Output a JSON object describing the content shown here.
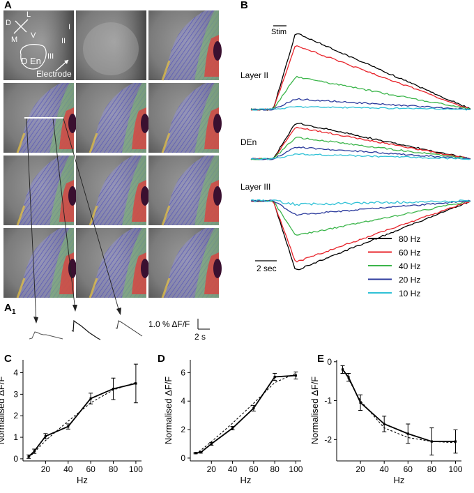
{
  "panels": {
    "A": "A",
    "A1": "A",
    "A1_sub": "1",
    "B": "B",
    "C": "C",
    "D": "D",
    "E": "E"
  },
  "panelA": {
    "orientation": {
      "d": "D",
      "l": "L",
      "m": "M",
      "v": "V"
    },
    "layer_labels": {
      "i": "I",
      "ii": "II",
      "iii": "III"
    },
    "region_label": "D En",
    "electrode_label": "Electrode"
  },
  "panelA1": {
    "scale_label": "1.0 % ΔF/F",
    "time_label": "2 s"
  },
  "panelB": {
    "stim_label": "Stim",
    "rows": [
      "Layer II",
      "DEn",
      "Layer III"
    ],
    "scale_label": "2 sec",
    "legend": [
      {
        "label": "80 Hz",
        "color": "#000000"
      },
      {
        "label": "60 Hz",
        "color": "#e8242b"
      },
      {
        "label": "40 Hz",
        "color": "#3bb54a"
      },
      {
        "label": "20 Hz",
        "color": "#2b3a9c"
      },
      {
        "label": "10 Hz",
        "color": "#2fc1d6"
      }
    ]
  },
  "chart_data": [
    {
      "type": "line",
      "panel": "C",
      "xlabel": "Hz",
      "ylabel": "Normalised ΔF/F",
      "xticks": [
        20,
        40,
        60,
        80,
        100
      ],
      "yticks": [
        0,
        1,
        2,
        3,
        4
      ],
      "xlim": [
        0,
        105
      ],
      "ylim": [
        -0.1,
        4.6
      ],
      "series": [
        {
          "name": "data",
          "style": "solid",
          "x": [
            5,
            10,
            20,
            40,
            60,
            80,
            100
          ],
          "y": [
            0.1,
            0.35,
            1.05,
            1.5,
            2.8,
            3.25,
            3.5
          ],
          "err": [
            0.08,
            0.1,
            0.12,
            0.12,
            0.25,
            0.5,
            0.9
          ]
        },
        {
          "name": "fit",
          "style": "dashed",
          "x": [
            5,
            10,
            20,
            40,
            60,
            80,
            100
          ],
          "y": [
            0.05,
            0.3,
            0.85,
            1.75,
            2.6,
            3.2,
            3.55
          ]
        }
      ]
    },
    {
      "type": "line",
      "panel": "D",
      "xlabel": "Hz",
      "ylabel": "Normalised ΔF/F",
      "xticks": [
        20,
        40,
        60,
        80,
        100
      ],
      "yticks": [
        0,
        2,
        4,
        6
      ],
      "xlim": [
        0,
        105
      ],
      "ylim": [
        -0.2,
        6.9
      ],
      "series": [
        {
          "name": "data",
          "style": "solid",
          "x": [
            5,
            10,
            20,
            40,
            60,
            80,
            100
          ],
          "y": [
            0.35,
            0.4,
            1.0,
            2.1,
            3.5,
            5.7,
            5.8
          ],
          "err": [
            0.05,
            0.05,
            0.1,
            0.12,
            0.2,
            0.25,
            0.25
          ]
        },
        {
          "name": "fit",
          "style": "dashed",
          "x": [
            5,
            10,
            20,
            40,
            60,
            80,
            100
          ],
          "y": [
            0.3,
            0.55,
            1.15,
            2.45,
            3.85,
            5.3,
            5.95
          ]
        }
      ]
    },
    {
      "type": "line",
      "panel": "E",
      "xlabel": "Hz",
      "ylabel": "Normalised ΔF/F",
      "xticks": [
        20,
        40,
        60,
        80,
        100
      ],
      "yticks": [
        0,
        -1,
        -2
      ],
      "xlim": [
        0,
        105
      ],
      "ylim": [
        -2.55,
        0.05
      ],
      "series": [
        {
          "name": "data",
          "style": "solid",
          "x": [
            5,
            10,
            20,
            40,
            60,
            80,
            100
          ],
          "y": [
            -0.2,
            -0.4,
            -1.05,
            -1.6,
            -1.85,
            -2.05,
            -2.05
          ],
          "err": [
            0.1,
            0.1,
            0.2,
            0.2,
            0.25,
            0.35,
            0.3
          ]
        },
        {
          "name": "fit",
          "style": "dashed",
          "x": [
            5,
            10,
            20,
            40,
            60,
            80,
            100
          ],
          "y": [
            -0.15,
            -0.45,
            -1.0,
            -1.7,
            -1.95,
            -2.05,
            -2.08
          ]
        }
      ]
    }
  ]
}
